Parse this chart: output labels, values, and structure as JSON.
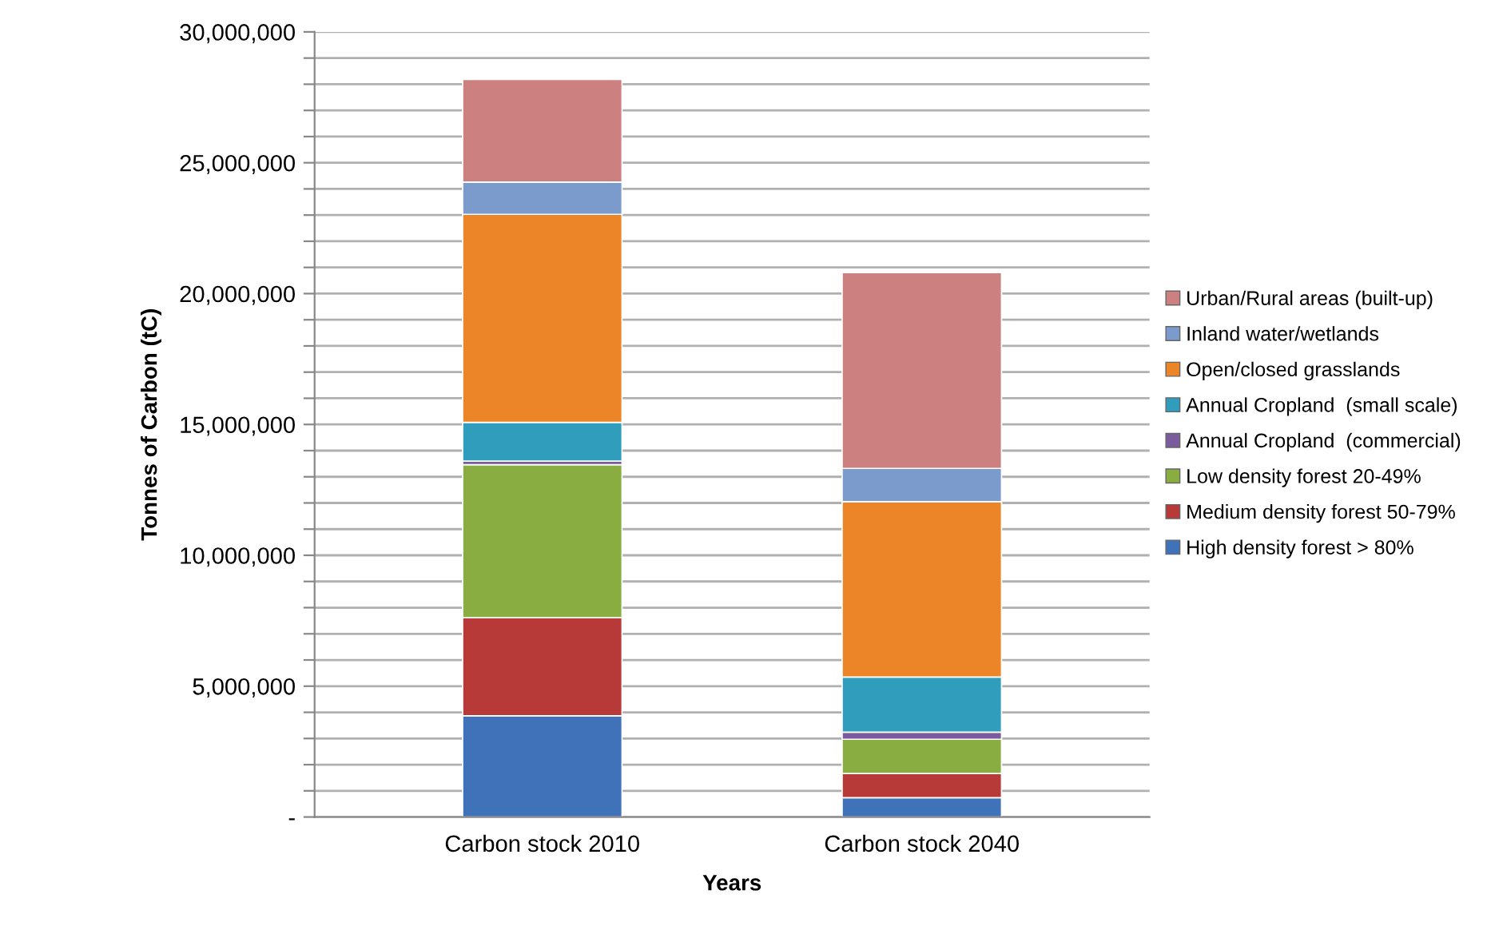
{
  "chart_data": {
    "type": "bar",
    "stacked": true,
    "xlabel": "Years",
    "ylabel": "Tonnes of Carbon (tC)",
    "categories": [
      "Carbon stock 2010",
      "Carbon stock 2040"
    ],
    "series": [
      {
        "name": "High density forest > 80%",
        "color": "#3f72b8",
        "values": [
          3870000,
          740000
        ]
      },
      {
        "name": "Medium density forest 50-79%",
        "color": "#b83a38",
        "values": [
          3750000,
          920000
        ]
      },
      {
        "name": "Low density forest 20-49%",
        "color": "#8aad42",
        "values": [
          5840000,
          1310000
        ]
      },
      {
        "name": "Annual Cropland  (commercial)",
        "color": "#7a5c9e",
        "values": [
          140000,
          270000
        ]
      },
      {
        "name": "Annual Cropland  (small scale)",
        "color": "#2f9dbb",
        "values": [
          1480000,
          2110000
        ]
      },
      {
        "name": "Open/closed grasslands",
        "color": "#ec8428",
        "values": [
          7950000,
          6700000
        ]
      },
      {
        "name": "Inland water/wetlands",
        "color": "#7b9bcc",
        "values": [
          1230000,
          1270000
        ]
      },
      {
        "name": "Urban/Rural areas (built-up)",
        "color": "#cc8080",
        "values": [
          3920000,
          7480000
        ]
      }
    ],
    "ylim": [
      0,
      30000000
    ],
    "yticks": [
      {
        "value": 0,
        "label": "-"
      },
      {
        "value": 1000000,
        "label": null
      },
      {
        "value": 2000000,
        "label": null
      },
      {
        "value": 3000000,
        "label": null
      },
      {
        "value": 4000000,
        "label": null
      },
      {
        "value": 5000000,
        "label": "5,000,000"
      },
      {
        "value": 6000000,
        "label": null
      },
      {
        "value": 7000000,
        "label": null
      },
      {
        "value": 8000000,
        "label": null
      },
      {
        "value": 9000000,
        "label": null
      },
      {
        "value": 10000000,
        "label": "10,000,000"
      },
      {
        "value": 11000000,
        "label": null
      },
      {
        "value": 12000000,
        "label": null
      },
      {
        "value": 13000000,
        "label": null
      },
      {
        "value": 14000000,
        "label": null
      },
      {
        "value": 15000000,
        "label": "15,000,000"
      },
      {
        "value": 16000000,
        "label": null
      },
      {
        "value": 17000000,
        "label": null
      },
      {
        "value": 18000000,
        "label": null
      },
      {
        "value": 19000000,
        "label": null
      },
      {
        "value": 20000000,
        "label": "20,000,000"
      },
      {
        "value": 21000000,
        "label": null
      },
      {
        "value": 22000000,
        "label": null
      },
      {
        "value": 23000000,
        "label": null
      },
      {
        "value": 24000000,
        "label": null
      },
      {
        "value": 25000000,
        "label": "25,000,000"
      },
      {
        "value": 26000000,
        "label": null
      },
      {
        "value": 27000000,
        "label": null
      },
      {
        "value": 28000000,
        "label": null
      },
      {
        "value": 29000000,
        "label": null
      },
      {
        "value": 30000000,
        "label": "30,000,000"
      }
    ],
    "grid": "y",
    "legend": "right"
  }
}
